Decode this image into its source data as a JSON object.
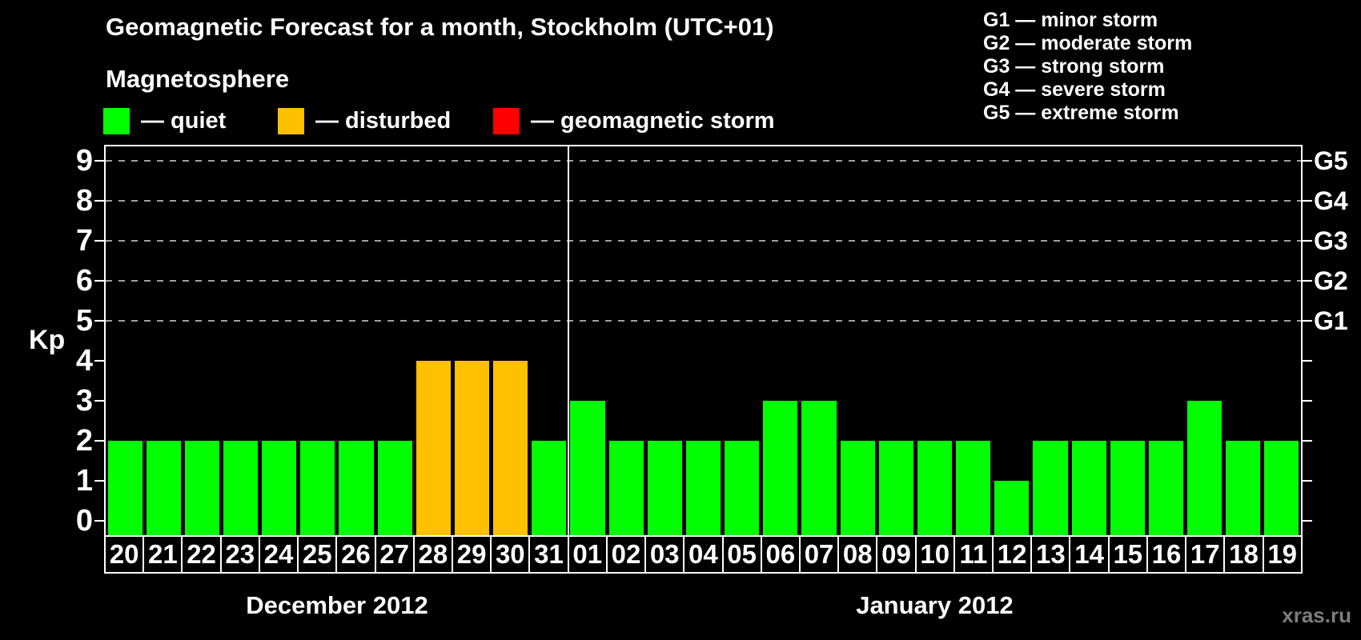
{
  "title": "Geomagnetic Forecast for a month, Stockholm (UTC+01)",
  "subtitle": "Magnetosphere",
  "legend": {
    "items": [
      {
        "name": "quiet",
        "label": "— quiet",
        "color": "#00ff00"
      },
      {
        "name": "disturbed",
        "label": "— disturbed",
        "color": "#ffc000"
      },
      {
        "name": "storm",
        "label": "— geomagnetic storm",
        "color": "#ff0000"
      }
    ]
  },
  "g_legend": {
    "lines": [
      "G1 — minor storm",
      "G2 — moderate storm",
      "G3 — strong storm",
      "G4 — severe storm",
      "G5 — extreme storm"
    ]
  },
  "watermark": "xras.ru",
  "chart_data": {
    "type": "bar",
    "title": "Geomagnetic Forecast for a month, Stockholm (UTC+01)",
    "ylabel": "Kp",
    "ylim": [
      0,
      9
    ],
    "y_ticks": [
      0,
      1,
      2,
      3,
      4,
      5,
      6,
      7,
      8,
      9
    ],
    "gridlines_at": [
      5,
      6,
      7,
      8,
      9
    ],
    "legend_position": "top",
    "right_axis": [
      {
        "kp": 5,
        "label": "G1"
      },
      {
        "kp": 6,
        "label": "G2"
      },
      {
        "kp": 7,
        "label": "G3"
      },
      {
        "kp": 8,
        "label": "G4"
      },
      {
        "kp": 9,
        "label": "G5"
      }
    ],
    "status_colors": {
      "quiet": "#00ff00",
      "disturbed": "#ffc000",
      "storm": "#ff0000"
    },
    "months": [
      {
        "label": "December 2012",
        "days": [
          "20",
          "21",
          "22",
          "23",
          "24",
          "25",
          "26",
          "27",
          "28",
          "29",
          "30",
          "31"
        ],
        "values": [
          2,
          2,
          2,
          2,
          2,
          2,
          2,
          2,
          4,
          4,
          4,
          2
        ],
        "states": [
          "quiet",
          "quiet",
          "quiet",
          "quiet",
          "quiet",
          "quiet",
          "quiet",
          "quiet",
          "disturbed",
          "disturbed",
          "disturbed",
          "quiet"
        ]
      },
      {
        "label": "January 2012",
        "days": [
          "01",
          "02",
          "03",
          "04",
          "05",
          "06",
          "07",
          "08",
          "09",
          "10",
          "11",
          "12",
          "13",
          "14",
          "15",
          "16",
          "17",
          "18",
          "19"
        ],
        "values": [
          3,
          2,
          2,
          2,
          2,
          3,
          3,
          2,
          2,
          2,
          2,
          1,
          2,
          2,
          2,
          2,
          3,
          2,
          2
        ],
        "states": [
          "quiet",
          "quiet",
          "quiet",
          "quiet",
          "quiet",
          "quiet",
          "quiet",
          "quiet",
          "quiet",
          "quiet",
          "quiet",
          "quiet",
          "quiet",
          "quiet",
          "quiet",
          "quiet",
          "quiet",
          "quiet",
          "quiet"
        ]
      }
    ]
  }
}
